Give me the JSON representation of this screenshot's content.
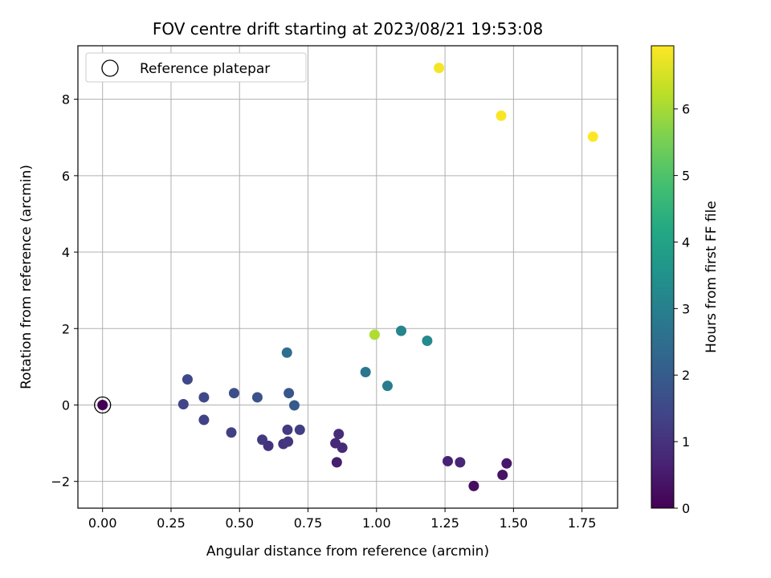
{
  "chart_data": {
    "type": "scatter",
    "title": "FOV centre drift starting at 2023/08/21 19:53:08",
    "xlabel": "Angular distance from reference (arcmin)",
    "ylabel": "Rotation from reference (arcmin)",
    "xlim": [
      -0.09,
      1.88
    ],
    "ylim": [
      -2.7,
      9.4
    ],
    "xticks": [
      0.0,
      0.25,
      0.5,
      0.75,
      1.0,
      1.25,
      1.5,
      1.75
    ],
    "xtick_labels": [
      "0.00",
      "0.25",
      "0.50",
      "0.75",
      "1.00",
      "1.25",
      "1.50",
      "1.75"
    ],
    "yticks": [
      -2,
      0,
      2,
      4,
      6,
      8
    ],
    "ytick_labels": [
      "−2",
      "0",
      "2",
      "4",
      "6",
      "8"
    ],
    "grid": true,
    "colorbar": {
      "label": "Hours from first FF file",
      "colormap": "viridis",
      "range": [
        0,
        6.95
      ],
      "ticks": [
        0,
        1,
        2,
        3,
        4,
        5,
        6
      ],
      "tick_labels": [
        "0",
        "1",
        "2",
        "3",
        "4",
        "5",
        "6"
      ]
    },
    "legend": {
      "position": "top-left",
      "entries": [
        {
          "label": "Reference platepar",
          "marker": "open-circle"
        }
      ]
    },
    "reference_point": {
      "x": 0.0,
      "y": 0.0
    },
    "points": [
      {
        "x": 0.0,
        "y": 0.0,
        "t": 0.0
      },
      {
        "x": 1.355,
        "y": -2.12,
        "t": 0.25
      },
      {
        "x": 1.46,
        "y": -1.83,
        "t": 0.35
      },
      {
        "x": 1.475,
        "y": -1.53,
        "t": 0.45
      },
      {
        "x": 0.855,
        "y": -1.5,
        "t": 0.55
      },
      {
        "x": 1.26,
        "y": -1.47,
        "t": 0.65
      },
      {
        "x": 1.305,
        "y": -1.5,
        "t": 0.75
      },
      {
        "x": 0.875,
        "y": -1.12,
        "t": 0.85
      },
      {
        "x": 0.85,
        "y": -1.0,
        "t": 0.8
      },
      {
        "x": 0.862,
        "y": -0.76,
        "t": 0.9
      },
      {
        "x": 0.605,
        "y": -1.07,
        "t": 1.0
      },
      {
        "x": 0.66,
        "y": -1.02,
        "t": 1.05
      },
      {
        "x": 0.677,
        "y": -0.96,
        "t": 1.1
      },
      {
        "x": 0.583,
        "y": -0.91,
        "t": 1.15
      },
      {
        "x": 0.675,
        "y": -0.65,
        "t": 1.2
      },
      {
        "x": 0.72,
        "y": -0.65,
        "t": 1.25
      },
      {
        "x": 0.47,
        "y": -0.72,
        "t": 1.3
      },
      {
        "x": 0.37,
        "y": -0.39,
        "t": 1.35
      },
      {
        "x": 0.295,
        "y": 0.02,
        "t": 1.45
      },
      {
        "x": 0.31,
        "y": 0.67,
        "t": 1.5
      },
      {
        "x": 0.37,
        "y": 0.2,
        "t": 1.55
      },
      {
        "x": 0.48,
        "y": 0.31,
        "t": 1.65
      },
      {
        "x": 0.565,
        "y": 0.2,
        "t": 1.75
      },
      {
        "x": 0.68,
        "y": 0.31,
        "t": 1.85
      },
      {
        "x": 0.7,
        "y": -0.01,
        "t": 1.95
      },
      {
        "x": 0.673,
        "y": 1.37,
        "t": 2.5
      },
      {
        "x": 0.96,
        "y": 0.86,
        "t": 2.75
      },
      {
        "x": 1.04,
        "y": 0.5,
        "t": 2.9
      },
      {
        "x": 1.09,
        "y": 1.94,
        "t": 3.1
      },
      {
        "x": 1.185,
        "y": 1.68,
        "t": 3.3
      },
      {
        "x": 0.993,
        "y": 1.84,
        "t": 6.1
      },
      {
        "x": 1.228,
        "y": 8.82,
        "t": 6.85
      },
      {
        "x": 1.455,
        "y": 7.57,
        "t": 6.9
      },
      {
        "x": 1.79,
        "y": 7.02,
        "t": 6.95
      }
    ]
  }
}
